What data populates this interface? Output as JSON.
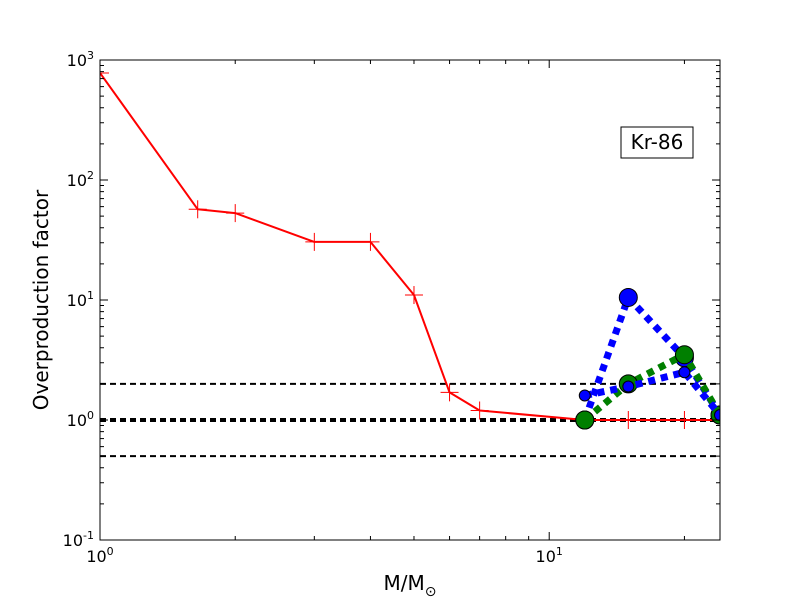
{
  "chart_data": {
    "type": "line",
    "xscale": "log",
    "yscale": "log",
    "xlim": [
      1,
      24
    ],
    "ylim": [
      0.1,
      1000
    ],
    "xlabel_main": "M/M",
    "xlabel_sub": "⊙",
    "ylabel": "Overproduction factor",
    "annotation": "Kr-86",
    "x_ticks": [
      {
        "value": 1,
        "base": "10",
        "exp": "0"
      },
      {
        "value": 10,
        "base": "10",
        "exp": "1"
      }
    ],
    "y_ticks": [
      {
        "value": 0.1,
        "base": "10",
        "exp": "-1"
      },
      {
        "value": 1,
        "base": "10",
        "exp": "0"
      },
      {
        "value": 10,
        "base": "10",
        "exp": "1"
      },
      {
        "value": 100,
        "base": "10",
        "exp": "2"
      },
      {
        "value": 1000,
        "base": "10",
        "exp": "3"
      }
    ],
    "reference_lines": [
      {
        "y": 2,
        "style": "dashed",
        "weight": "normal"
      },
      {
        "y": 1,
        "style": "dashed",
        "weight": "bold"
      },
      {
        "y": 0.5,
        "style": "dashed",
        "weight": "normal"
      }
    ],
    "series": [
      {
        "color": "#ff0000",
        "style": "solid",
        "marker": "plus",
        "points": [
          [
            1.0,
            780
          ],
          [
            1.65,
            57
          ],
          [
            2.0,
            53
          ],
          [
            3.0,
            30.5
          ],
          [
            4.0,
            30.5
          ],
          [
            5.0,
            11
          ],
          [
            6.0,
            1.7
          ],
          [
            7.0,
            1.2
          ],
          [
            12.0,
            1.0
          ],
          [
            15.0,
            1.0
          ],
          [
            20.0,
            1.0
          ],
          [
            24.0,
            1.0
          ]
        ]
      },
      {
        "color": "#0000ff",
        "style": "dotted",
        "marker": "large-circle",
        "points": [
          [
            12.0,
            1.0
          ],
          [
            15.0,
            10.5
          ],
          [
            20.0,
            3.3
          ],
          [
            24.0,
            1.1
          ]
        ]
      },
      {
        "color": "#007f00",
        "style": "dotted",
        "marker": "large-circle",
        "points": [
          [
            12.0,
            1.0
          ],
          [
            15.0,
            2.0
          ],
          [
            20.0,
            3.5
          ],
          [
            24.0,
            1.1
          ]
        ]
      },
      {
        "color": "#0000ff",
        "style": "dotted",
        "marker": "small-circle",
        "points": [
          [
            12.0,
            1.6
          ],
          [
            15.0,
            1.9
          ],
          [
            20.0,
            2.5
          ],
          [
            24.0,
            1.1
          ]
        ]
      }
    ]
  }
}
